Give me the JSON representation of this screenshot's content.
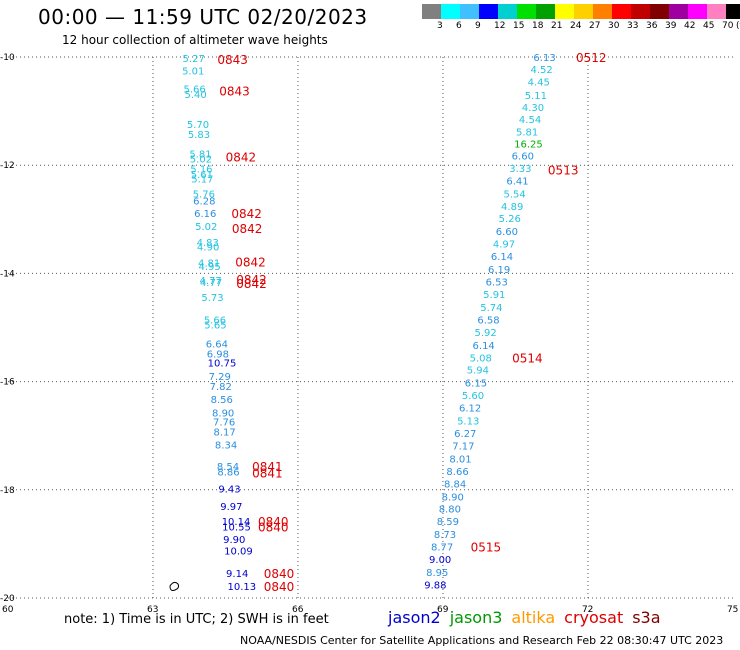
{
  "title": "00:00 — 11:59 UTC 02/20/2023",
  "subtitle": "12 hour collection of altimeter wave heights",
  "legend": {
    "unit": "(ft)",
    "colors": [
      "#808080",
      "#00ffff",
      "#40c0ff",
      "#0000ff",
      "#00d0d0",
      "#00e000",
      "#00a000",
      "#ffff00",
      "#ffd000",
      "#ff8000",
      "#ff0000",
      "#c00000",
      "#800000",
      "#a000a0",
      "#ff00ff",
      "#ff80c0",
      "#000000"
    ],
    "labels": [
      "3",
      "6",
      "9",
      "12",
      "15",
      "18",
      "21",
      "24",
      "27",
      "30",
      "33",
      "36",
      "39",
      "42",
      "45",
      "70"
    ]
  },
  "axes": {
    "lat_labels": [
      "-10",
      "-12",
      "-14",
      "-16",
      "-18",
      "-20"
    ],
    "lon_labels": [
      "60",
      "63",
      "66",
      "69",
      "72",
      "75"
    ]
  },
  "track_west": {
    "points": [
      {
        "lat": -10.02,
        "lon": 63.86,
        "v": "5.27"
      },
      {
        "lat": -10.25,
        "lon": 63.85,
        "v": "5.01"
      },
      {
        "lat": -10.58,
        "lon": 63.88,
        "v": "5.66"
      },
      {
        "lat": -10.68,
        "lon": 63.9,
        "v": "5.40"
      },
      {
        "lat": -11.24,
        "lon": 63.95,
        "v": "5.70"
      },
      {
        "lat": -11.42,
        "lon": 63.97,
        "v": "5.83"
      },
      {
        "lat": -11.78,
        "lon": 64.0,
        "v": "5.81"
      },
      {
        "lat": -11.88,
        "lon": 64.01,
        "v": "5.02"
      },
      {
        "lat": -12.06,
        "lon": 64.02,
        "v": "5.16"
      },
      {
        "lat": -12.16,
        "lon": 64.03,
        "v": "5.61"
      },
      {
        "lat": -12.25,
        "lon": 64.04,
        "v": "5.17"
      },
      {
        "lat": -12.52,
        "lon": 64.07,
        "v": "5.76"
      },
      {
        "lat": -12.65,
        "lon": 64.08,
        "v": "6.28"
      },
      {
        "lat": -12.88,
        "lon": 64.1,
        "v": "6.16"
      },
      {
        "lat": -13.12,
        "lon": 64.12,
        "v": "5.02"
      },
      {
        "lat": -13.42,
        "lon": 64.15,
        "v": "4.83"
      },
      {
        "lat": -13.5,
        "lon": 64.16,
        "v": "4.90"
      },
      {
        "lat": -13.8,
        "lon": 64.18,
        "v": "4.81"
      },
      {
        "lat": -13.86,
        "lon": 64.19,
        "v": "4.95"
      },
      {
        "lat": -14.12,
        "lon": 64.21,
        "v": "4.77"
      },
      {
        "lat": -14.16,
        "lon": 64.22,
        "v": "4.77"
      },
      {
        "lat": -14.44,
        "lon": 64.25,
        "v": "5.73"
      },
      {
        "lat": -14.85,
        "lon": 64.3,
        "v": "5.66"
      },
      {
        "lat": -14.94,
        "lon": 64.31,
        "v": "5.65"
      },
      {
        "lat": -15.3,
        "lon": 64.34,
        "v": "6.64"
      },
      {
        "lat": -15.48,
        "lon": 64.36,
        "v": "6.98"
      },
      {
        "lat": -15.65,
        "lon": 64.38,
        "v": "10.75"
      },
      {
        "lat": -15.9,
        "lon": 64.4,
        "v": "7.29"
      },
      {
        "lat": -16.08,
        "lon": 64.42,
        "v": "7.82"
      },
      {
        "lat": -16.32,
        "lon": 64.44,
        "v": "8.56"
      },
      {
        "lat": -16.57,
        "lon": 64.47,
        "v": "8.90"
      },
      {
        "lat": -16.74,
        "lon": 64.49,
        "v": "7.76"
      },
      {
        "lat": -16.92,
        "lon": 64.5,
        "v": "8.17"
      },
      {
        "lat": -17.16,
        "lon": 64.53,
        "v": "8.34"
      },
      {
        "lat": -17.56,
        "lon": 64.57,
        "v": "8.54"
      },
      {
        "lat": -17.66,
        "lon": 64.58,
        "v": "8.86"
      },
      {
        "lat": -17.98,
        "lon": 64.6,
        "v": "9.43"
      },
      {
        "lat": -18.3,
        "lon": 64.64,
        "v": "9.97"
      },
      {
        "lat": -18.58,
        "lon": 64.67,
        "v": "10.14"
      },
      {
        "lat": -18.68,
        "lon": 64.68,
        "v": "10.55"
      },
      {
        "lat": -18.91,
        "lon": 64.7,
        "v": "9.90"
      },
      {
        "lat": -19.12,
        "lon": 64.72,
        "v": "10.09"
      },
      {
        "lat": -19.54,
        "lon": 64.76,
        "v": "9.14"
      },
      {
        "lat": -19.78,
        "lon": 64.79,
        "v": "10.13"
      }
    ],
    "times": [
      {
        "lat": -10.04,
        "lon": 64.58,
        "t": "0843"
      },
      {
        "lat": -10.62,
        "lon": 64.62,
        "t": "0843"
      },
      {
        "lat": -11.84,
        "lon": 64.75,
        "t": "0842"
      },
      {
        "lat": -12.88,
        "lon": 64.87,
        "t": "0842"
      },
      {
        "lat": -13.16,
        "lon": 64.88,
        "t": "0842"
      },
      {
        "lat": -13.78,
        "lon": 64.95,
        "t": "0842"
      },
      {
        "lat": -14.1,
        "lon": 64.97,
        "t": "0842"
      },
      {
        "lat": -14.18,
        "lon": 64.97,
        "t": "0842"
      },
      {
        "lat": -17.56,
        "lon": 65.3,
        "t": "0841"
      },
      {
        "lat": -17.68,
        "lon": 65.3,
        "t": "0841"
      },
      {
        "lat": -18.58,
        "lon": 65.42,
        "t": "0840"
      },
      {
        "lat": -18.68,
        "lon": 65.42,
        "t": "0840"
      },
      {
        "lat": -19.54,
        "lon": 65.54,
        "t": "0840"
      },
      {
        "lat": -19.78,
        "lon": 65.54,
        "t": "0840"
      }
    ]
  },
  "track_east": {
    "points": [
      {
        "lat": -10.0,
        "lon": 71.12,
        "v": "6.13"
      },
      {
        "lat": -10.22,
        "lon": 71.06,
        "v": "4.52"
      },
      {
        "lat": -10.45,
        "lon": 71.0,
        "v": "4.45"
      },
      {
        "lat": -10.7,
        "lon": 70.94,
        "v": "5.11"
      },
      {
        "lat": -10.92,
        "lon": 70.88,
        "v": "4.30"
      },
      {
        "lat": -11.15,
        "lon": 70.82,
        "v": "4.54"
      },
      {
        "lat": -11.38,
        "lon": 70.76,
        "v": "5.81"
      },
      {
        "lat": -11.6,
        "lon": 70.72,
        "v": "16.25"
      },
      {
        "lat": -11.82,
        "lon": 70.67,
        "v": "6.60"
      },
      {
        "lat": -12.05,
        "lon": 70.62,
        "v": "3.33"
      },
      {
        "lat": -12.28,
        "lon": 70.56,
        "v": "6.41"
      },
      {
        "lat": -12.52,
        "lon": 70.5,
        "v": "5.54"
      },
      {
        "lat": -12.75,
        "lon": 70.45,
        "v": "4.89"
      },
      {
        "lat": -12.98,
        "lon": 70.4,
        "v": "5.26"
      },
      {
        "lat": -13.22,
        "lon": 70.34,
        "v": "6.60"
      },
      {
        "lat": -13.45,
        "lon": 70.28,
        "v": "4.97"
      },
      {
        "lat": -13.68,
        "lon": 70.24,
        "v": "6.14"
      },
      {
        "lat": -13.92,
        "lon": 70.18,
        "v": "6.19"
      },
      {
        "lat": -14.15,
        "lon": 70.13,
        "v": "6.53"
      },
      {
        "lat": -14.38,
        "lon": 70.08,
        "v": "5.91"
      },
      {
        "lat": -14.62,
        "lon": 70.02,
        "v": "5.74"
      },
      {
        "lat": -14.85,
        "lon": 69.96,
        "v": "6.58"
      },
      {
        "lat": -15.08,
        "lon": 69.9,
        "v": "5.92"
      },
      {
        "lat": -15.32,
        "lon": 69.86,
        "v": "6.14"
      },
      {
        "lat": -15.55,
        "lon": 69.8,
        "v": "5.08"
      },
      {
        "lat": -15.78,
        "lon": 69.74,
        "v": "5.94"
      },
      {
        "lat": -16.02,
        "lon": 69.7,
        "v": "6.15"
      },
      {
        "lat": -16.25,
        "lon": 69.64,
        "v": "5.60"
      },
      {
        "lat": -16.48,
        "lon": 69.58,
        "v": "6.12"
      },
      {
        "lat": -16.72,
        "lon": 69.54,
        "v": "5.13"
      },
      {
        "lat": -16.95,
        "lon": 69.48,
        "v": "6.27"
      },
      {
        "lat": -17.18,
        "lon": 69.44,
        "v": "7.17"
      },
      {
        "lat": -17.42,
        "lon": 69.38,
        "v": "8.01"
      },
      {
        "lat": -17.65,
        "lon": 69.32,
        "v": "8.66"
      },
      {
        "lat": -17.88,
        "lon": 69.27,
        "v": "8.84"
      },
      {
        "lat": -18.12,
        "lon": 69.22,
        "v": "8.90"
      },
      {
        "lat": -18.35,
        "lon": 69.16,
        "v": "8.80"
      },
      {
        "lat": -18.58,
        "lon": 69.12,
        "v": "8.59"
      },
      {
        "lat": -18.82,
        "lon": 69.06,
        "v": "8.73"
      },
      {
        "lat": -19.05,
        "lon": 69.0,
        "v": "8.77"
      },
      {
        "lat": -19.28,
        "lon": 68.96,
        "v": "9.00"
      },
      {
        "lat": -19.52,
        "lon": 68.9,
        "v": "8.95"
      },
      {
        "lat": -19.75,
        "lon": 68.86,
        "v": "9.88"
      }
    ],
    "times": [
      {
        "lat": -10.0,
        "lon": 72.0,
        "t": "0512"
      },
      {
        "lat": -12.08,
        "lon": 71.42,
        "t": "0513"
      },
      {
        "lat": -15.55,
        "lon": 70.68,
        "t": "0514"
      },
      {
        "lat": -19.05,
        "lon": 69.82,
        "t": "0515"
      }
    ]
  },
  "note": "note: 1) Time is in UTC; 2) SWH is in feet",
  "satellites": [
    {
      "name": "jason2",
      "color": "#0000cc"
    },
    {
      "name": "jason3",
      "color": "#009900"
    },
    {
      "name": "altika",
      "color": "#ff9900"
    },
    {
      "name": "cryosat",
      "color": "#dd0000"
    },
    {
      "name": "s3a",
      "color": "#800000"
    }
  ],
  "footer": "NOAA/NESDIS Center for Satellite Applications and Research   Feb 22 08:30:47 UTC 2023"
}
